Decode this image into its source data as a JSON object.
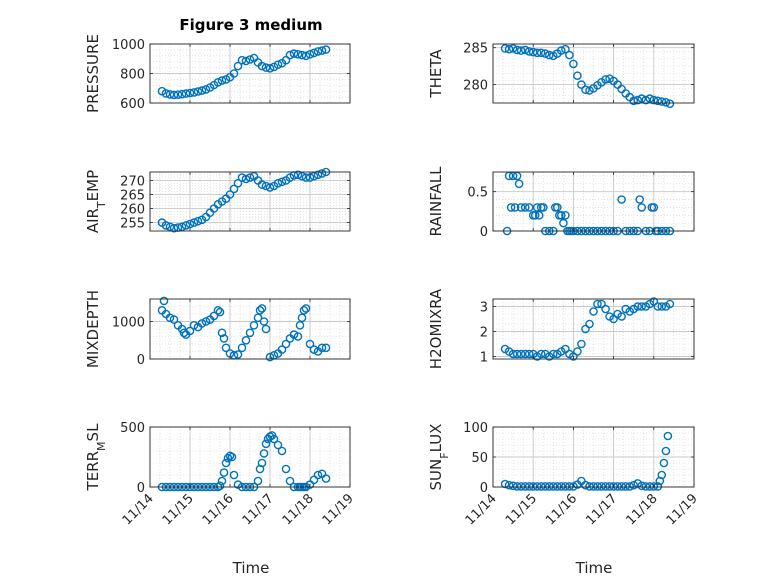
{
  "figure": {
    "title": "Figure 3 medium",
    "xlabel": "Time",
    "x_ticks": [
      "11/14",
      "11/15",
      "11/16",
      "11/17",
      "11/18",
      "11/19"
    ],
    "marker_color": "#0072BD"
  },
  "chart_data": [
    {
      "type": "scatter",
      "ylabel": "PRESSURE",
      "ylim": [
        600,
        1000
      ],
      "yticks": [
        600,
        800,
        1000
      ],
      "grid": true,
      "x": [
        14.3,
        14.4,
        14.5,
        14.6,
        14.7,
        14.8,
        14.9,
        15.0,
        15.1,
        15.2,
        15.3,
        15.4,
        15.5,
        15.6,
        15.7,
        15.8,
        15.9,
        16.0,
        16.1,
        16.2,
        16.3,
        16.4,
        16.5,
        16.6,
        16.7,
        16.8,
        16.9,
        17.0,
        17.1,
        17.2,
        17.3,
        17.4,
        17.5,
        17.6,
        17.7,
        17.8,
        17.9,
        18.0,
        18.1,
        18.2,
        18.3,
        18.4
      ],
      "y": [
        680,
        665,
        658,
        655,
        656,
        660,
        664,
        668,
        672,
        678,
        684,
        692,
        705,
        722,
        740,
        752,
        760,
        775,
        800,
        850,
        890,
        885,
        895,
        905,
        875,
        850,
        840,
        835,
        845,
        860,
        870,
        890,
        925,
        935,
        930,
        925,
        920,
        930,
        940,
        950,
        955,
        962
      ]
    },
    {
      "type": "scatter",
      "ylabel": "THETA",
      "ylim": [
        277.5,
        285.5
      ],
      "yticks": [
        280,
        285
      ],
      "grid": true,
      "x": [
        14.3,
        14.4,
        14.5,
        14.6,
        14.7,
        14.8,
        14.9,
        15.0,
        15.1,
        15.2,
        15.3,
        15.4,
        15.5,
        15.6,
        15.7,
        15.8,
        15.9,
        16.0,
        16.1,
        16.2,
        16.3,
        16.4,
        16.5,
        16.6,
        16.7,
        16.8,
        16.9,
        17.0,
        17.1,
        17.2,
        17.3,
        17.4,
        17.5,
        17.6,
        17.7,
        17.8,
        17.9,
        18.0,
        18.1,
        18.2,
        18.3,
        18.4
      ],
      "y": [
        284.9,
        284.8,
        284.9,
        284.7,
        284.6,
        284.7,
        284.5,
        284.4,
        284.3,
        284.3,
        284.2,
        284.0,
        283.9,
        284.2,
        284.6,
        284.8,
        284.0,
        282.8,
        281.2,
        280.0,
        279.3,
        279.2,
        279.5,
        279.9,
        280.3,
        280.7,
        280.8,
        280.5,
        280.0,
        279.4,
        278.8,
        278.3,
        277.8,
        277.9,
        278.1,
        277.9,
        278.1,
        277.9,
        277.8,
        277.7,
        277.6,
        277.4
      ]
    },
    {
      "type": "scatter",
      "ylabel": "AIR_TEMP",
      "ylim": [
        252,
        273
      ],
      "yticks": [
        255,
        260,
        265,
        270
      ],
      "grid": true,
      "x": [
        14.3,
        14.4,
        14.5,
        14.6,
        14.7,
        14.8,
        14.9,
        15.0,
        15.1,
        15.2,
        15.3,
        15.4,
        15.5,
        15.6,
        15.7,
        15.8,
        15.9,
        16.0,
        16.1,
        16.2,
        16.3,
        16.4,
        16.5,
        16.6,
        16.7,
        16.8,
        16.9,
        17.0,
        17.1,
        17.2,
        17.3,
        17.4,
        17.5,
        17.6,
        17.7,
        17.8,
        17.9,
        18.0,
        18.1,
        18.2,
        18.3,
        18.4
      ],
      "y": [
        255,
        254,
        253.5,
        253,
        253.2,
        253.5,
        254,
        254.5,
        255,
        255.5,
        256,
        257,
        258.5,
        260,
        261.5,
        262.5,
        263.5,
        265,
        267,
        269,
        271,
        270.5,
        271,
        271.5,
        270,
        268.5,
        268,
        267.5,
        268,
        269,
        269.5,
        270,
        271,
        271.8,
        272,
        271.5,
        271,
        271,
        271.5,
        272,
        272.5,
        273
      ]
    },
    {
      "type": "scatter",
      "ylabel": "RAINFALL",
      "ylim": [
        0,
        0.75
      ],
      "yticks": [
        0,
        0.5
      ],
      "grid": true,
      "x": [
        14.35,
        14.4,
        14.45,
        14.5,
        14.55,
        14.6,
        14.65,
        14.7,
        14.8,
        14.9,
        15.0,
        15.05,
        15.1,
        15.15,
        15.2,
        15.25,
        15.3,
        15.4,
        15.5,
        15.55,
        15.6,
        15.65,
        15.7,
        15.75,
        15.8,
        15.85,
        15.9,
        15.95,
        16.0,
        16.1,
        16.2,
        16.3,
        16.4,
        16.5,
        16.6,
        16.7,
        16.8,
        16.9,
        17.0,
        17.1,
        17.2,
        17.3,
        17.4,
        17.5,
        17.6,
        17.65,
        17.7,
        17.8,
        17.9,
        17.95,
        18.0,
        18.05,
        18.1,
        18.2,
        18.3,
        18.4
      ],
      "y": [
        0,
        0.7,
        0.3,
        0.7,
        0.3,
        0.7,
        0.6,
        0.3,
        0.3,
        0.3,
        0.2,
        0.2,
        0.3,
        0.2,
        0.3,
        0.3,
        0,
        0,
        0,
        0.3,
        0.3,
        0.2,
        0.2,
        0.1,
        0.2,
        0,
        0,
        0,
        0,
        0,
        0,
        0,
        0,
        0,
        0,
        0,
        0,
        0,
        0,
        0,
        0.4,
        0,
        0,
        0,
        0,
        0.4,
        0.3,
        0,
        0,
        0.3,
        0.3,
        0,
        0,
        0,
        0,
        0
      ]
    },
    {
      "type": "scatter",
      "ylabel": "MIXDEPTH",
      "ylim": [
        0,
        1600
      ],
      "yticks": [
        0,
        1000
      ],
      "grid": true,
      "x": [
        14.3,
        14.35,
        14.4,
        14.5,
        14.6,
        14.7,
        14.8,
        14.85,
        14.9,
        15.0,
        15.1,
        15.2,
        15.3,
        15.4,
        15.5,
        15.6,
        15.7,
        15.75,
        15.8,
        15.85,
        15.9,
        16.0,
        16.1,
        16.2,
        16.3,
        16.4,
        16.5,
        16.6,
        16.7,
        16.75,
        16.8,
        16.85,
        16.9,
        17.0,
        17.1,
        17.2,
        17.3,
        17.4,
        17.5,
        17.6,
        17.7,
        17.75,
        17.8,
        17.85,
        17.9,
        18.0,
        18.1,
        18.2,
        18.3,
        18.4
      ],
      "y": [
        1300,
        1550,
        1200,
        1100,
        1050,
        900,
        800,
        700,
        650,
        750,
        900,
        850,
        950,
        1000,
        1050,
        1150,
        1300,
        1250,
        700,
        550,
        300,
        150,
        100,
        120,
        300,
        500,
        700,
        900,
        1100,
        1300,
        1350,
        1000,
        800,
        50,
        100,
        150,
        250,
        400,
        550,
        650,
        600,
        900,
        1100,
        1300,
        1350,
        400,
        250,
        200,
        300,
        300
      ]
    },
    {
      "type": "scatter",
      "ylabel": "H2OMIXRA",
      "ylim": [
        0.9,
        3.3
      ],
      "yticks": [
        1,
        2,
        3
      ],
      "grid": true,
      "x": [
        14.3,
        14.4,
        14.5,
        14.6,
        14.7,
        14.8,
        14.9,
        15.0,
        15.1,
        15.2,
        15.3,
        15.4,
        15.5,
        15.6,
        15.7,
        15.8,
        15.9,
        16.0,
        16.1,
        16.2,
        16.3,
        16.4,
        16.5,
        16.6,
        16.7,
        16.8,
        16.9,
        17.0,
        17.1,
        17.2,
        17.3,
        17.4,
        17.5,
        17.6,
        17.7,
        17.8,
        17.9,
        18.0,
        18.1,
        18.2,
        18.3,
        18.4
      ],
      "y": [
        1.3,
        1.2,
        1.1,
        1.1,
        1.1,
        1.1,
        1.1,
        1.1,
        1.0,
        1.1,
        1.1,
        1.0,
        1.1,
        1.1,
        1.2,
        1.3,
        1.1,
        1.0,
        1.2,
        1.5,
        2.1,
        2.3,
        2.8,
        3.1,
        3.1,
        2.9,
        2.6,
        2.5,
        2.7,
        2.6,
        2.9,
        2.8,
        2.9,
        3.0,
        3.0,
        3.0,
        3.1,
        3.2,
        3.0,
        3.0,
        3.0,
        3.1
      ]
    },
    {
      "type": "scatter",
      "ylabel": "TERR_MSL",
      "ylim": [
        0,
        500
      ],
      "yticks": [
        0,
        500
      ],
      "grid": true,
      "x": [
        14.3,
        14.4,
        14.5,
        14.6,
        14.7,
        14.8,
        14.9,
        15.0,
        15.1,
        15.2,
        15.3,
        15.4,
        15.5,
        15.6,
        15.7,
        15.75,
        15.8,
        15.85,
        15.9,
        15.95,
        16.0,
        16.05,
        16.1,
        16.2,
        16.3,
        16.4,
        16.5,
        16.6,
        16.7,
        16.75,
        16.8,
        16.85,
        16.9,
        16.95,
        17.0,
        17.05,
        17.1,
        17.2,
        17.3,
        17.4,
        17.5,
        17.6,
        17.7,
        17.75,
        17.8,
        17.85,
        17.9,
        18.0,
        18.1,
        18.2,
        18.3,
        18.4
      ],
      "y": [
        0,
        0,
        0,
        0,
        0,
        0,
        0,
        0,
        0,
        0,
        0,
        0,
        0,
        0,
        0,
        10,
        50,
        120,
        200,
        240,
        260,
        250,
        100,
        20,
        0,
        0,
        0,
        0,
        50,
        150,
        200,
        280,
        360,
        400,
        420,
        430,
        400,
        350,
        300,
        150,
        50,
        0,
        0,
        0,
        0,
        0,
        0,
        20,
        60,
        100,
        110,
        70
      ]
    },
    {
      "type": "scatter",
      "ylabel": "SUN_FLUX",
      "ylim": [
        0,
        100
      ],
      "yticks": [
        0,
        50,
        100
      ],
      "grid": true,
      "x": [
        14.3,
        14.4,
        14.5,
        14.6,
        14.7,
        14.8,
        14.9,
        15.0,
        15.1,
        15.2,
        15.3,
        15.4,
        15.5,
        15.6,
        15.7,
        15.8,
        15.9,
        16.0,
        16.1,
        16.2,
        16.3,
        16.4,
        16.5,
        16.6,
        16.7,
        16.8,
        16.9,
        17.0,
        17.1,
        17.2,
        17.3,
        17.4,
        17.5,
        17.6,
        17.7,
        17.8,
        17.9,
        18.0,
        18.1,
        18.15,
        18.2,
        18.25,
        18.3,
        18.35
      ],
      "y": [
        5,
        3,
        2,
        1,
        1,
        1,
        1,
        1,
        1,
        1,
        1,
        1,
        1,
        1,
        1,
        1,
        1,
        1,
        4,
        10,
        3,
        1,
        1,
        1,
        1,
        1,
        1,
        1,
        1,
        1,
        1,
        1,
        3,
        6,
        2,
        1,
        1,
        1,
        1,
        10,
        20,
        40,
        60,
        85
      ]
    }
  ]
}
